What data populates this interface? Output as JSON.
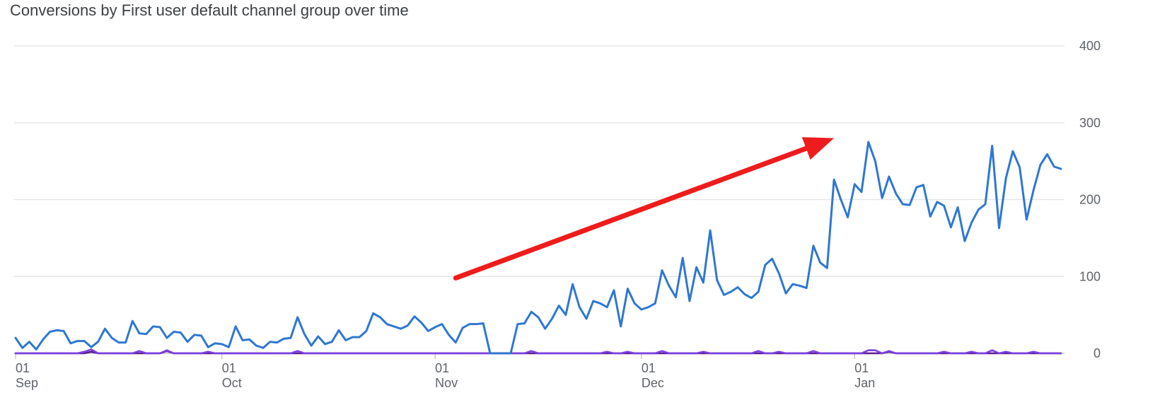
{
  "chart_data": {
    "type": "line",
    "title": "Conversions by First user default channel group over time",
    "xlabel": "",
    "ylabel": "",
    "ylim": [
      0,
      400
    ],
    "yticks": [
      0,
      100,
      200,
      300,
      400
    ],
    "x_start": "2023-09-01",
    "xticks": [
      {
        "day": "01",
        "month": "Sep",
        "date": "2023-09-01"
      },
      {
        "day": "01",
        "month": "Oct",
        "date": "2023-10-01"
      },
      {
        "day": "01",
        "month": "Nov",
        "date": "2023-11-01"
      },
      {
        "day": "01",
        "month": "Dec",
        "date": "2023-12-01"
      },
      {
        "day": "01",
        "month": "Jan",
        "date": "2024-01-01"
      }
    ],
    "legend": "none",
    "grid": true,
    "annotation": {
      "type": "arrow",
      "color": "#ee1c1c",
      "from": {
        "date": "2023-11-04",
        "y": 98
      },
      "to": {
        "date": "2023-12-29",
        "y": 280
      }
    },
    "series": [
      {
        "color": "#2f77d1",
        "values": [
          20,
          7,
          15,
          5,
          18,
          28,
          30,
          29,
          13,
          16,
          16,
          8,
          15,
          32,
          20,
          14,
          14,
          42,
          26,
          25,
          35,
          34,
          20,
          28,
          27,
          15,
          24,
          23,
          8,
          13,
          12,
          8,
          35,
          17,
          18,
          10,
          7,
          15,
          14,
          19,
          20,
          47,
          25,
          10,
          22,
          12,
          15,
          30,
          17,
          21,
          21,
          29,
          52,
          47,
          38,
          35,
          32,
          36,
          48,
          40,
          29,
          34,
          38,
          24,
          14,
          33,
          38,
          38,
          39,
          0,
          0,
          0,
          0,
          38,
          39,
          54,
          47,
          32,
          45,
          62,
          50,
          90,
          60,
          45,
          68,
          65,
          60,
          82,
          35,
          84,
          65,
          57,
          60,
          65,
          108,
          88,
          73,
          124,
          68,
          112,
          92,
          160,
          95,
          76,
          80,
          86,
          77,
          72,
          80,
          115,
          123,
          104,
          78,
          90,
          88,
          85,
          140,
          118,
          111,
          226,
          200,
          177,
          220,
          210,
          275,
          250,
          202,
          230,
          208,
          194,
          193,
          216,
          219,
          178,
          197,
          192,
          164,
          190,
          146,
          170,
          187,
          194,
          270,
          163,
          228,
          263,
          242,
          174,
          212,
          245,
          259,
          243,
          240
        ]
      },
      {
        "color": "#7b3fe4",
        "values": [
          0,
          0,
          0,
          0,
          0,
          0,
          0,
          0,
          0,
          0,
          2,
          5,
          0,
          0,
          0,
          0,
          0,
          0,
          3,
          0,
          0,
          0,
          4,
          0,
          0,
          0,
          0,
          0,
          2,
          0,
          0,
          0,
          0,
          0,
          0,
          0,
          0,
          0,
          0,
          0,
          0,
          3,
          0,
          0,
          0,
          0,
          0,
          0,
          0,
          0,
          0,
          0,
          0,
          0,
          0,
          0,
          0,
          0,
          0,
          0,
          0,
          0,
          0,
          0,
          0,
          0,
          0,
          0,
          0,
          0,
          0,
          0,
          0,
          0,
          0,
          3,
          0,
          0,
          0,
          0,
          0,
          0,
          0,
          0,
          0,
          0,
          2,
          0,
          0,
          2,
          0,
          0,
          0,
          0,
          3,
          0,
          0,
          0,
          0,
          0,
          2,
          0,
          0,
          0,
          0,
          0,
          0,
          0,
          3,
          0,
          0,
          2,
          0,
          0,
          0,
          0,
          3,
          0,
          0,
          0,
          0,
          0,
          0,
          0,
          4,
          4,
          0,
          3,
          0,
          0,
          0,
          0,
          0,
          0,
          0,
          2,
          0,
          0,
          0,
          2,
          0,
          0,
          4,
          0,
          2,
          0,
          0,
          0,
          2,
          0,
          0,
          0,
          0
        ]
      },
      {
        "color": "#5b1a8c",
        "values": [
          0,
          0,
          0,
          0,
          0,
          0,
          0,
          0,
          0,
          0,
          0,
          2,
          0,
          0,
          0,
          0,
          0,
          0,
          0,
          0,
          0,
          0,
          3,
          0,
          0,
          0,
          0,
          0,
          0,
          0,
          0,
          0,
          0,
          0,
          0,
          0,
          0,
          0,
          0,
          0,
          0,
          0,
          0,
          0,
          0,
          0,
          0,
          0,
          0,
          0,
          0,
          0,
          0,
          0,
          0,
          0,
          0,
          0,
          0,
          0,
          0,
          0,
          0,
          0,
          0,
          0,
          0,
          0,
          0,
          0,
          0,
          0,
          0,
          0,
          0,
          0,
          0,
          0,
          0,
          0,
          0,
          0,
          0,
          0,
          0,
          0,
          0,
          0,
          0,
          0,
          0,
          0,
          0,
          0,
          0,
          0,
          0,
          0,
          0,
          0,
          0,
          0,
          0,
          0,
          0,
          0,
          0,
          0,
          0,
          0,
          0,
          0,
          0,
          0,
          0,
          0,
          0,
          0,
          0,
          0,
          0,
          0,
          0,
          0,
          0,
          0,
          0,
          2,
          0,
          0,
          0,
          0,
          0,
          0,
          0,
          0,
          0,
          0,
          0,
          0,
          0,
          0,
          0,
          0,
          0,
          0,
          0,
          0,
          0,
          0,
          0,
          0,
          0
        ]
      }
    ]
  }
}
